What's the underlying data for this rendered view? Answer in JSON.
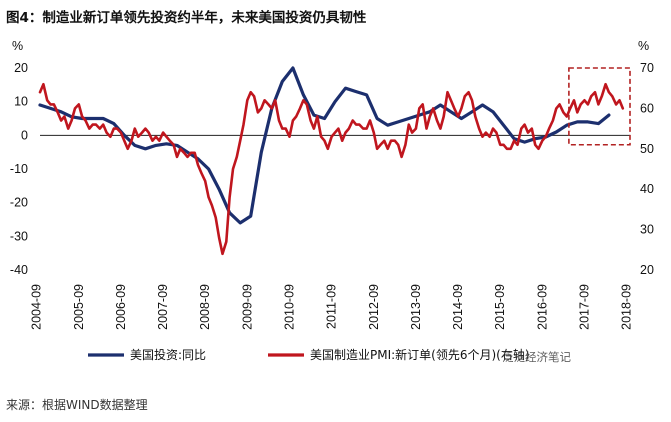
{
  "title": "图4：制造业新订单领先投资约半年，未来美国投资仍具韧性",
  "source": "来源：根据WIND数据整理",
  "watermark": "泛泛经济笔记",
  "colors": {
    "investment": "#1c2f6e",
    "pmi": "#c0161e",
    "highlight": "#b22222",
    "zero_line": "#222222"
  },
  "chart_data": {
    "type": "line",
    "left_axis_unit": "%",
    "right_axis_unit": "%",
    "left_ylim": [
      -40,
      20
    ],
    "right_ylim": [
      20,
      70
    ],
    "left_yticks": [
      "20",
      "10",
      "0",
      "-10",
      "-20",
      "-30",
      "-40"
    ],
    "right_yticks": [
      "70",
      "60",
      "50",
      "40",
      "30",
      "20"
    ],
    "xticks": [
      "2004-09",
      "2005-09",
      "2006-09",
      "2007-09",
      "2008-09",
      "2009-09",
      "2010-09",
      "2011-09",
      "2012-09",
      "2013-09",
      "2014-09",
      "2015-09",
      "2016-09",
      "2017-09",
      "2018-09"
    ],
    "series": [
      {
        "name": "美国投资:同比",
        "axis": "left",
        "points": [
          [
            2004.75,
            9
          ],
          [
            2005.0,
            8
          ],
          [
            2005.25,
            7
          ],
          [
            2005.5,
            5.5
          ],
          [
            2005.75,
            5
          ],
          [
            2006.0,
            5
          ],
          [
            2006.25,
            5
          ],
          [
            2006.5,
            3.5
          ],
          [
            2006.75,
            0
          ],
          [
            2007.0,
            -3
          ],
          [
            2007.25,
            -4
          ],
          [
            2007.5,
            -3
          ],
          [
            2007.75,
            -2.5
          ],
          [
            2008.0,
            -3
          ],
          [
            2008.25,
            -5
          ],
          [
            2008.5,
            -7
          ],
          [
            2008.75,
            -10
          ],
          [
            2009.0,
            -16
          ],
          [
            2009.25,
            -23
          ],
          [
            2009.5,
            -26
          ],
          [
            2009.75,
            -24
          ],
          [
            2010.0,
            -5
          ],
          [
            2010.25,
            8
          ],
          [
            2010.5,
            16
          ],
          [
            2010.75,
            20
          ],
          [
            2011.0,
            12
          ],
          [
            2011.25,
            6
          ],
          [
            2011.5,
            5
          ],
          [
            2011.75,
            10
          ],
          [
            2012.0,
            14
          ],
          [
            2012.25,
            13
          ],
          [
            2012.5,
            12
          ],
          [
            2012.75,
            5
          ],
          [
            2013.0,
            3
          ],
          [
            2013.25,
            4
          ],
          [
            2013.5,
            5
          ],
          [
            2013.75,
            6
          ],
          [
            2014.0,
            7
          ],
          [
            2014.25,
            9
          ],
          [
            2014.5,
            7
          ],
          [
            2014.75,
            5
          ],
          [
            2015.0,
            7
          ],
          [
            2015.25,
            9
          ],
          [
            2015.5,
            7
          ],
          [
            2015.75,
            3
          ],
          [
            2016.0,
            -1
          ],
          [
            2016.25,
            -2
          ],
          [
            2016.5,
            -1
          ],
          [
            2016.75,
            -0.5
          ],
          [
            2017.0,
            1
          ],
          [
            2017.25,
            3
          ],
          [
            2017.5,
            4
          ],
          [
            2017.75,
            4
          ],
          [
            2018.0,
            3.5
          ],
          [
            2018.25,
            6
          ]
        ]
      },
      {
        "name": "美国制造业PMI:新订单(领先6个月)(右轴)",
        "axis": "right",
        "points": [
          [
            2004.75,
            64
          ],
          [
            2004.83,
            66
          ],
          [
            2004.92,
            62
          ],
          [
            2005.0,
            61
          ],
          [
            2005.08,
            61
          ],
          [
            2005.17,
            59
          ],
          [
            2005.25,
            57
          ],
          [
            2005.33,
            58
          ],
          [
            2005.42,
            55
          ],
          [
            2005.5,
            57
          ],
          [
            2005.58,
            60
          ],
          [
            2005.67,
            61
          ],
          [
            2005.75,
            58
          ],
          [
            2005.83,
            57
          ],
          [
            2005.92,
            55
          ],
          [
            2006.0,
            56
          ],
          [
            2006.08,
            56
          ],
          [
            2006.17,
            55
          ],
          [
            2006.25,
            56
          ],
          [
            2006.33,
            54
          ],
          [
            2006.42,
            53
          ],
          [
            2006.5,
            55
          ],
          [
            2006.58,
            55
          ],
          [
            2006.67,
            54
          ],
          [
            2006.75,
            52
          ],
          [
            2006.83,
            50
          ],
          [
            2006.92,
            52
          ],
          [
            2007.0,
            55
          ],
          [
            2007.08,
            53
          ],
          [
            2007.17,
            54
          ],
          [
            2007.25,
            55
          ],
          [
            2007.33,
            54
          ],
          [
            2007.42,
            52
          ],
          [
            2007.5,
            53
          ],
          [
            2007.58,
            52
          ],
          [
            2007.67,
            54
          ],
          [
            2007.75,
            53
          ],
          [
            2007.83,
            52
          ],
          [
            2007.92,
            51
          ],
          [
            2008.0,
            48
          ],
          [
            2008.08,
            50
          ],
          [
            2008.17,
            49
          ],
          [
            2008.25,
            48
          ],
          [
            2008.33,
            49
          ],
          [
            2008.42,
            49
          ],
          [
            2008.5,
            46
          ],
          [
            2008.58,
            44
          ],
          [
            2008.67,
            42
          ],
          [
            2008.75,
            38
          ],
          [
            2008.83,
            36
          ],
          [
            2008.92,
            33
          ],
          [
            2009.0,
            28
          ],
          [
            2009.08,
            24
          ],
          [
            2009.17,
            27
          ],
          [
            2009.25,
            38
          ],
          [
            2009.33,
            45
          ],
          [
            2009.42,
            48
          ],
          [
            2009.5,
            52
          ],
          [
            2009.58,
            56
          ],
          [
            2009.67,
            62
          ],
          [
            2009.75,
            64
          ],
          [
            2009.83,
            63
          ],
          [
            2009.92,
            59
          ],
          [
            2010.0,
            60
          ],
          [
            2010.08,
            62
          ],
          [
            2010.17,
            61
          ],
          [
            2010.25,
            60
          ],
          [
            2010.33,
            62
          ],
          [
            2010.42,
            57
          ],
          [
            2010.5,
            55
          ],
          [
            2010.58,
            55
          ],
          [
            2010.67,
            53
          ],
          [
            2010.75,
            57
          ],
          [
            2010.83,
            58
          ],
          [
            2010.92,
            60
          ],
          [
            2011.0,
            62
          ],
          [
            2011.08,
            61
          ],
          [
            2011.17,
            57
          ],
          [
            2011.25,
            55
          ],
          [
            2011.33,
            58
          ],
          [
            2011.42,
            53
          ],
          [
            2011.5,
            52
          ],
          [
            2011.58,
            50
          ],
          [
            2011.67,
            53
          ],
          [
            2011.75,
            54
          ],
          [
            2011.83,
            55
          ],
          [
            2011.92,
            52
          ],
          [
            2012.0,
            54
          ],
          [
            2012.08,
            55
          ],
          [
            2012.17,
            57
          ],
          [
            2012.25,
            56
          ],
          [
            2012.33,
            56
          ],
          [
            2012.42,
            55
          ],
          [
            2012.5,
            55
          ],
          [
            2012.58,
            57
          ],
          [
            2012.67,
            54
          ],
          [
            2012.75,
            50
          ],
          [
            2012.83,
            51
          ],
          [
            2012.92,
            52
          ],
          [
            2013.0,
            50
          ],
          [
            2013.08,
            52
          ],
          [
            2013.17,
            52
          ],
          [
            2013.25,
            51
          ],
          [
            2013.33,
            48
          ],
          [
            2013.42,
            51
          ],
          [
            2013.5,
            56
          ],
          [
            2013.58,
            54
          ],
          [
            2013.67,
            55
          ],
          [
            2013.75,
            60
          ],
          [
            2013.83,
            61
          ],
          [
            2013.92,
            55
          ],
          [
            2014.0,
            58
          ],
          [
            2014.08,
            60
          ],
          [
            2014.17,
            57
          ],
          [
            2014.25,
            55
          ],
          [
            2014.33,
            58
          ],
          [
            2014.42,
            64
          ],
          [
            2014.5,
            62
          ],
          [
            2014.58,
            60
          ],
          [
            2014.67,
            58
          ],
          [
            2014.75,
            60
          ],
          [
            2014.83,
            63
          ],
          [
            2014.92,
            64
          ],
          [
            2015.0,
            62
          ],
          [
            2015.08,
            58
          ],
          [
            2015.17,
            55
          ],
          [
            2015.25,
            53
          ],
          [
            2015.33,
            54
          ],
          [
            2015.42,
            53
          ],
          [
            2015.5,
            55
          ],
          [
            2015.58,
            54
          ],
          [
            2015.67,
            51
          ],
          [
            2015.75,
            51
          ],
          [
            2015.83,
            50
          ],
          [
            2015.92,
            50
          ],
          [
            2016.0,
            52
          ],
          [
            2016.08,
            51
          ],
          [
            2016.17,
            55
          ],
          [
            2016.25,
            56
          ],
          [
            2016.33,
            54
          ],
          [
            2016.42,
            55
          ],
          [
            2016.5,
            51
          ],
          [
            2016.58,
            50
          ],
          [
            2016.67,
            52
          ],
          [
            2016.75,
            53
          ],
          [
            2016.83,
            55
          ],
          [
            2016.92,
            57
          ],
          [
            2017.0,
            60
          ],
          [
            2017.08,
            61
          ],
          [
            2017.17,
            59
          ],
          [
            2017.25,
            58
          ],
          [
            2017.33,
            60
          ],
          [
            2017.42,
            62
          ],
          [
            2017.5,
            59
          ],
          [
            2017.58,
            61
          ],
          [
            2017.67,
            62
          ],
          [
            2017.75,
            61
          ],
          [
            2017.83,
            63
          ],
          [
            2017.92,
            64
          ],
          [
            2018.0,
            61
          ],
          [
            2018.08,
            63
          ],
          [
            2018.17,
            66
          ],
          [
            2018.25,
            64
          ],
          [
            2018.33,
            63
          ],
          [
            2018.42,
            61
          ],
          [
            2018.5,
            62
          ],
          [
            2018.58,
            60
          ]
        ]
      }
    ],
    "highlight_box": {
      "x_from": 2017.3,
      "x_to": 2018.75,
      "y_from": 51,
      "y_to": 70,
      "axis": "right",
      "style": "dashed"
    },
    "legend": [
      {
        "label": "美国投资:同比",
        "color": "#1c2f6e"
      },
      {
        "label": "美国制造业PMI:新订单(领先6个月)(右轴)",
        "color": "#c0161e"
      }
    ],
    "legend_position": "bottom",
    "grid": false
  }
}
